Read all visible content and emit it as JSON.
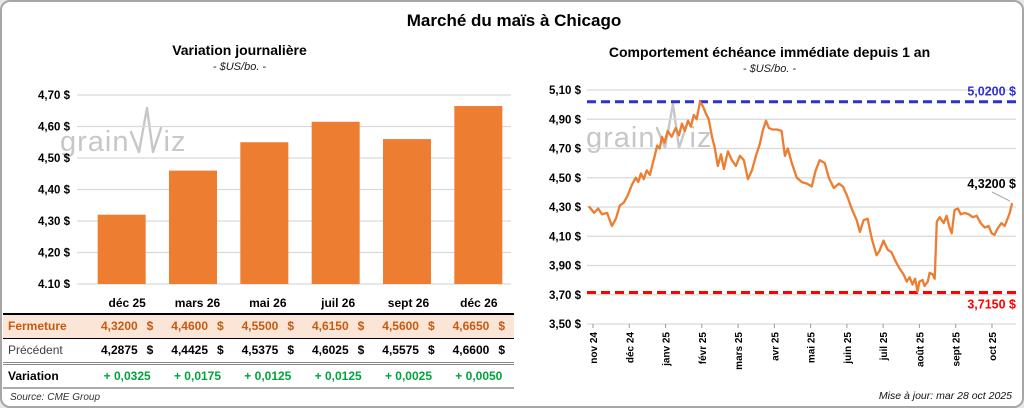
{
  "header": {
    "title": "Marché du maïs à Chicago"
  },
  "watermark": {
    "prefix": "grain",
    "suffix": "iz"
  },
  "colors": {
    "orange": "#ED7D31",
    "close_text": "#C55A11",
    "close_bg": "#FBE5D6",
    "green": "#00A33C",
    "blue": "#3030CC",
    "red": "#FF0000",
    "grid": "#D9D9D9",
    "tick": "#9a9a9a",
    "leader": "#A6A6A6",
    "watermark": "#C7C7C7"
  },
  "chart_data": [
    {
      "type": "bar",
      "title": "Variation journalière",
      "subtitle": "- $US/bo. -",
      "categories": [
        "déc 25",
        "mars 26",
        "mai 26",
        "juil 26",
        "sept 26",
        "déc 26"
      ],
      "values": [
        4.32,
        4.46,
        4.55,
        4.615,
        4.56,
        4.665
      ],
      "ylim": [
        4.1,
        4.7
      ],
      "grid": true,
      "legend": "none",
      "yticks": [
        {
          "v": 4.7,
          "label": "4,70 $"
        },
        {
          "v": 4.6,
          "label": "4,60 $"
        },
        {
          "v": 4.5,
          "label": "4,50 $"
        },
        {
          "v": 4.4,
          "label": "4,40 $"
        },
        {
          "v": 4.3,
          "label": "4,30 $"
        },
        {
          "v": 4.2,
          "label": "4,20 $"
        },
        {
          "v": 4.1,
          "label": "4,10 $"
        }
      ]
    },
    {
      "type": "line",
      "title": "Comportement échéance immédiate depuis 1 an",
      "subtitle": "- $US/bo. -",
      "ylim": [
        3.5,
        5.1
      ],
      "grid": true,
      "legend": "none",
      "x_ticks": [
        "nov 24",
        "déc 24",
        "janv 25",
        "févr 25",
        "mars 25",
        "avr 25",
        "mai 25",
        "juin 25",
        "juil 25",
        "août 25",
        "sept 25",
        "oct 25"
      ],
      "yticks": [
        {
          "v": 5.1,
          "label": "5,10 $"
        },
        {
          "v": 4.9,
          "label": "4,90 $"
        },
        {
          "v": 4.7,
          "label": "4,70 $"
        },
        {
          "v": 4.5,
          "label": "4,50 $"
        },
        {
          "v": 4.3,
          "label": "4,30 $"
        },
        {
          "v": 4.1,
          "label": "4,10 $"
        },
        {
          "v": 3.9,
          "label": "3,90 $"
        },
        {
          "v": 3.7,
          "label": "3,70 $"
        },
        {
          "v": 3.5,
          "label": "3,50 $"
        }
      ],
      "max_line": {
        "value": 5.02,
        "label": "5,0200 $"
      },
      "min_line": {
        "value": 3.715,
        "label": "3,7150 $"
      },
      "last_label": "4,3200 $",
      "points": [
        [
          -0.1,
          4.3
        ],
        [
          0.03,
          4.26
        ],
        [
          0.14,
          4.29
        ],
        [
          0.25,
          4.25
        ],
        [
          0.39,
          4.26
        ],
        [
          0.52,
          4.17
        ],
        [
          0.63,
          4.22
        ],
        [
          0.74,
          4.31
        ],
        [
          0.85,
          4.33
        ],
        [
          0.96,
          4.38
        ],
        [
          1.07,
          4.45
        ],
        [
          1.18,
          4.5
        ],
        [
          1.25,
          4.47
        ],
        [
          1.32,
          4.53
        ],
        [
          1.4,
          4.49
        ],
        [
          1.48,
          4.55
        ],
        [
          1.57,
          4.52
        ],
        [
          1.63,
          4.58
        ],
        [
          1.7,
          4.65
        ],
        [
          1.77,
          4.72
        ],
        [
          1.84,
          4.7
        ],
        [
          1.9,
          4.78
        ],
        [
          1.97,
          4.74
        ],
        [
          2.06,
          4.82
        ],
        [
          2.17,
          4.78
        ],
        [
          2.28,
          4.84
        ],
        [
          2.37,
          4.79
        ],
        [
          2.45,
          4.87
        ],
        [
          2.53,
          4.82
        ],
        [
          2.62,
          4.89
        ],
        [
          2.7,
          4.85
        ],
        [
          2.78,
          4.93
        ],
        [
          2.86,
          4.9
        ],
        [
          2.95,
          5.02
        ],
        [
          3.03,
          4.99
        ],
        [
          3.11,
          4.94
        ],
        [
          3.19,
          4.9
        ],
        [
          3.28,
          4.78
        ],
        [
          3.36,
          4.7
        ],
        [
          3.44,
          4.58
        ],
        [
          3.53,
          4.66
        ],
        [
          3.61,
          4.56
        ],
        [
          3.72,
          4.68
        ],
        [
          3.83,
          4.62
        ],
        [
          3.94,
          4.58
        ],
        [
          4.05,
          4.65
        ],
        [
          4.16,
          4.62
        ],
        [
          4.27,
          4.49
        ],
        [
          4.38,
          4.55
        ],
        [
          4.49,
          4.65
        ],
        [
          4.6,
          4.73
        ],
        [
          4.68,
          4.82
        ],
        [
          4.77,
          4.89
        ],
        [
          4.85,
          4.84
        ],
        [
          4.95,
          4.83
        ],
        [
          5.07,
          4.83
        ],
        [
          5.2,
          4.82
        ],
        [
          5.29,
          4.65
        ],
        [
          5.37,
          4.7
        ],
        [
          5.48,
          4.6
        ],
        [
          5.62,
          4.5
        ],
        [
          5.76,
          4.47
        ],
        [
          5.9,
          4.46
        ],
        [
          6.03,
          4.44
        ],
        [
          6.14,
          4.55
        ],
        [
          6.25,
          4.62
        ],
        [
          6.39,
          4.6
        ],
        [
          6.5,
          4.5
        ],
        [
          6.64,
          4.43
        ],
        [
          6.78,
          4.46
        ],
        [
          6.89,
          4.44
        ],
        [
          7.0,
          4.38
        ],
        [
          7.13,
          4.29
        ],
        [
          7.27,
          4.21
        ],
        [
          7.36,
          4.13
        ],
        [
          7.46,
          4.21
        ],
        [
          7.57,
          4.22
        ],
        [
          7.69,
          4.08
        ],
        [
          7.82,
          3.97
        ],
        [
          7.9,
          4.0
        ],
        [
          8.01,
          4.07
        ],
        [
          8.12,
          4.01
        ],
        [
          8.23,
          3.99
        ],
        [
          8.34,
          3.93
        ],
        [
          8.45,
          3.88
        ],
        [
          8.56,
          3.84
        ],
        [
          8.65,
          3.79
        ],
        [
          8.73,
          3.82
        ],
        [
          8.81,
          3.77
        ],
        [
          8.88,
          3.81
        ],
        [
          8.95,
          3.72
        ],
        [
          9.0,
          3.79
        ],
        [
          9.09,
          3.8
        ],
        [
          9.14,
          3.76
        ],
        [
          9.23,
          3.79
        ],
        [
          9.28,
          3.85
        ],
        [
          9.36,
          3.84
        ],
        [
          9.42,
          3.81
        ],
        [
          9.48,
          4.2
        ],
        [
          9.56,
          4.23
        ],
        [
          9.67,
          4.19
        ],
        [
          9.75,
          4.24
        ],
        [
          9.83,
          4.16
        ],
        [
          9.89,
          4.12
        ],
        [
          9.97,
          4.28
        ],
        [
          10.06,
          4.29
        ],
        [
          10.14,
          4.25
        ],
        [
          10.25,
          4.26
        ],
        [
          10.36,
          4.25
        ],
        [
          10.47,
          4.23
        ],
        [
          10.58,
          4.24
        ],
        [
          10.69,
          4.19
        ],
        [
          10.8,
          4.16
        ],
        [
          10.91,
          4.17
        ],
        [
          10.99,
          4.12
        ],
        [
          11.07,
          4.11
        ],
        [
          11.15,
          4.15
        ],
        [
          11.26,
          4.19
        ],
        [
          11.35,
          4.17
        ],
        [
          11.43,
          4.22
        ],
        [
          11.49,
          4.26
        ],
        [
          11.55,
          4.32
        ]
      ]
    },
    {
      "type": "table",
      "columns": [
        "déc 25",
        "mars 26",
        "mai 26",
        "juil 26",
        "sept 26",
        "déc 26"
      ],
      "currency": "$",
      "rows": [
        {
          "label": "Fermeture",
          "style": "close",
          "with_currency": true,
          "values": [
            "4,3200",
            "4,4600",
            "4,5500",
            "4,6150",
            "4,5600",
            "4,6650"
          ]
        },
        {
          "label": "Précédent",
          "style": "previous",
          "with_currency": true,
          "values": [
            "4,2875",
            "4,4425",
            "4,5375",
            "4,6025",
            "4,5575",
            "4,6600"
          ]
        },
        {
          "label": "Variation",
          "style": "variation",
          "with_currency": false,
          "values": [
            "+ 0,0325",
            "+ 0,0175",
            "+ 0,0125",
            "+ 0,0125",
            "+ 0,0025",
            "+ 0,0050"
          ]
        }
      ]
    }
  ],
  "footer": {
    "source": "Source: CME Group",
    "updated": "Mise à jour: mar 28 oct 2025"
  }
}
